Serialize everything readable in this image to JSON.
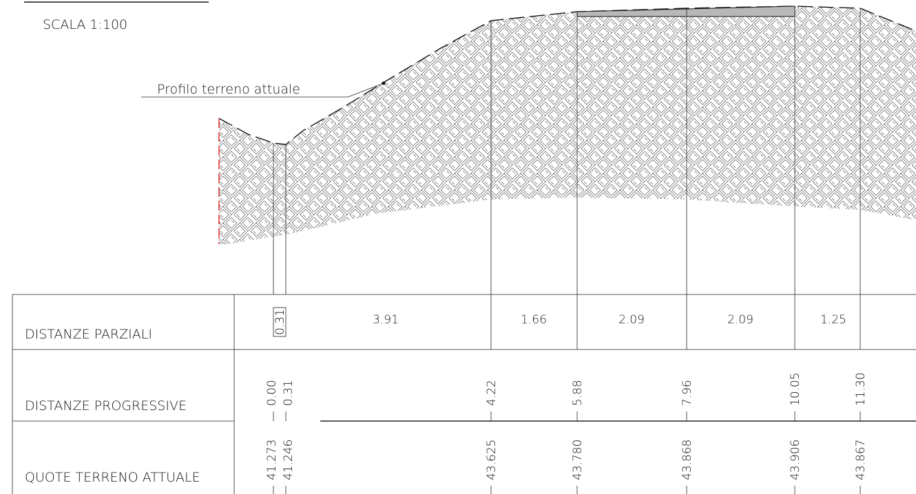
{
  "header": {
    "scale": "SCALA 1:100"
  },
  "callout": {
    "label": "Profilo terreno attuale"
  },
  "table": {
    "rows": [
      {
        "label": "DISTANZE PARZIALI",
        "values": [
          "0.31",
          "3.91",
          "1.66",
          "2.09",
          "2.09",
          "1.25"
        ]
      },
      {
        "label": "DISTANZE PROGRESSIVE",
        "values": [
          "0.00",
          "0.31",
          "4.22",
          "5.88",
          "7.96",
          "10.05",
          "11.30"
        ]
      },
      {
        "label": "QUOTE TERRENO ATTUALE",
        "values": [
          "41.273",
          "41.246",
          "43.625",
          "43.780",
          "43.868",
          "43.906",
          "43.867"
        ]
      }
    ]
  }
}
